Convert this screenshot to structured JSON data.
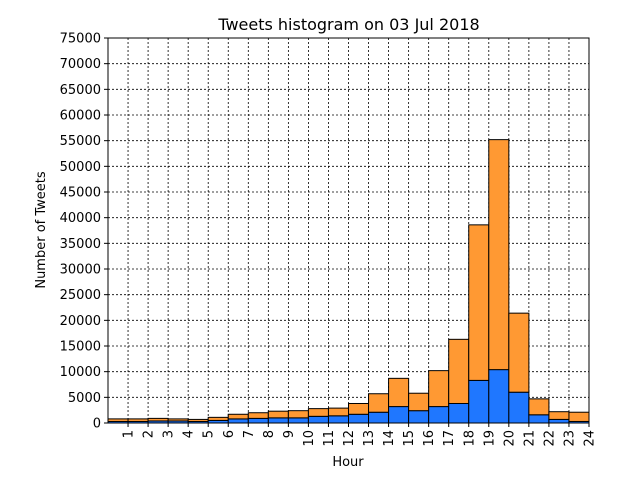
{
  "chart_data": {
    "type": "bar",
    "stacked": true,
    "title": "Tweets histogram on 03 Jul 2018",
    "xlabel": "Hour",
    "ylabel": "Number of Tweets",
    "categories": [
      "1",
      "2",
      "3",
      "4",
      "5",
      "6",
      "7",
      "8",
      "9",
      "10",
      "11",
      "12",
      "13",
      "14",
      "15",
      "16",
      "17",
      "18",
      "19",
      "20",
      "21",
      "22",
      "23",
      "24"
    ],
    "series": [
      {
        "color": "#1f77ff",
        "values": [
          300,
          300,
          400,
          400,
          300,
          500,
          800,
          900,
          1000,
          1000,
          1300,
          1400,
          1700,
          2100,
          3200,
          2400,
          3200,
          3800,
          8300,
          10400,
          6000,
          1600,
          700,
          300
        ]
      },
      {
        "color": "#ff9933",
        "values": [
          500,
          500,
          500,
          400,
          400,
          600,
          900,
          1100,
          1300,
          1400,
          1500,
          1500,
          2100,
          3600,
          5500,
          3400,
          7000,
          12500,
          30300,
          44800,
          15400,
          3100,
          1500,
          1800
        ]
      }
    ],
    "ylim": [
      0,
      75000
    ],
    "yticks": [
      "0",
      "5000",
      "10000",
      "15000",
      "20000",
      "25000",
      "30000",
      "35000",
      "40000",
      "45000",
      "50000",
      "55000",
      "60000",
      "65000",
      "70000",
      "75000"
    ],
    "grid": true
  }
}
